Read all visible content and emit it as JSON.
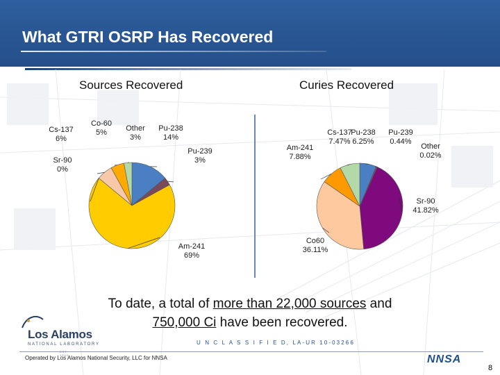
{
  "slide": {
    "title": "What GTRI OSRP Has Recovered",
    "summary_pre": "To date, a total of ",
    "summary_link1": "more than 22,000 sources",
    "summary_mid": " and",
    "summary_link2": "750,000 Ci",
    "summary_post": " have been recovered.",
    "logo_name": "Los Alamos",
    "logo_sub": "NATIONAL LABORATORY",
    "logo_est": "EST. 1943",
    "classification": "U N C L A S S I F I E D, LA-UR 10-03266",
    "operated_by": "Operated by Los Alamos National Security, LLC for NNSA",
    "nnsa_logo": "NNSA",
    "page_number": "8"
  },
  "colors": {
    "header": "#2f5f9e",
    "pu238": "#4a7fc4",
    "pu239": "#7a4a5a",
    "am241": "#ffcc00",
    "sr90": "#f5c6a5",
    "cs137": "#ffaa00",
    "co60": "#7e0a7e",
    "other": "#b3d9a8",
    "co60_curies": "#ffc9a0",
    "cs137_curies": "#ff9900"
  },
  "chart_data": [
    {
      "type": "pie",
      "title": "Sources Recovered",
      "slices": [
        {
          "name": "Pu-238",
          "label": "Pu-238",
          "value": 14,
          "value_label": "14%",
          "color": "#4a7fc4"
        },
        {
          "name": "Pu-239",
          "label": "Pu-239",
          "value": 3,
          "value_label": "3%",
          "color": "#7a4a5a"
        },
        {
          "name": "Am-241",
          "label": "Am-241",
          "value": 69,
          "value_label": "69%",
          "color": "#ffcc00"
        },
        {
          "name": "Sr-90",
          "label": "Sr-90",
          "value": 0,
          "value_label": "0%",
          "color": "#f5c6a5"
        },
        {
          "name": "Cs-137",
          "label": "Cs-137",
          "value": 6,
          "value_label": "6%",
          "color": "#f7c9a8"
        },
        {
          "name": "Co-60",
          "label": "Co-60",
          "value": 5,
          "value_label": "5%",
          "color": "#ffaa00"
        },
        {
          "name": "Other",
          "label": "Other",
          "value": 3,
          "value_label": "3%",
          "color": "#b3d9a8"
        }
      ]
    },
    {
      "type": "pie",
      "title": "Curies Recovered",
      "slices": [
        {
          "name": "Pu-238",
          "label": "Pu-238",
          "value": 6.25,
          "value_label": "6.25%",
          "color": "#4a7fc4"
        },
        {
          "name": "Pu-239",
          "label": "Pu-239",
          "value": 0.44,
          "value_label": "0.44%",
          "color": "#7a4a5a"
        },
        {
          "name": "Other",
          "label": "Other",
          "value": 0.02,
          "value_label": "0.02%",
          "color": "#c9c9c9"
        },
        {
          "name": "Sr-90",
          "label": "Sr-90",
          "value": 41.82,
          "value_label": "41.82%",
          "color": "#7e0a7e"
        },
        {
          "name": "Co60",
          "label": "Co60",
          "value": 36.11,
          "value_label": "36.11%",
          "color": "#ffc9a0"
        },
        {
          "name": "Am-241",
          "label": "Am-241",
          "value": 7.88,
          "value_label": "7.88%",
          "color": "#ff9900"
        },
        {
          "name": "Cs-137",
          "label": "Cs-137",
          "value": 7.47,
          "value_label": "7.47%",
          "color": "#b3d9a8"
        }
      ]
    }
  ]
}
